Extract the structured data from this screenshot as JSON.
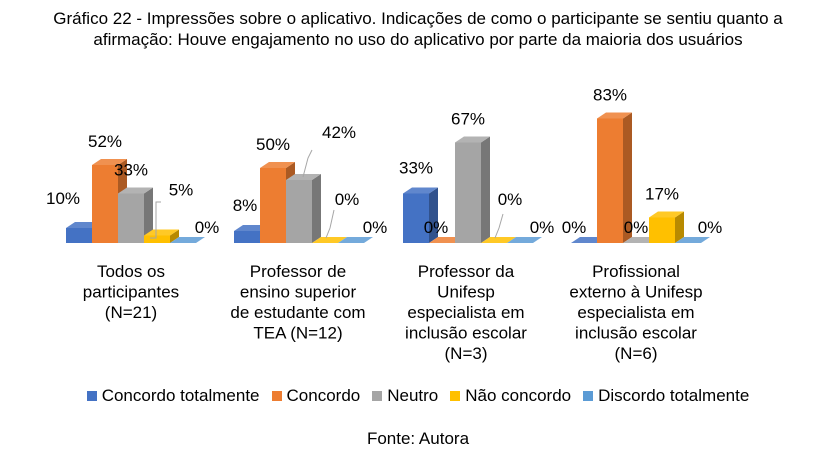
{
  "chart_data": {
    "type": "bar",
    "title": "Gráfico 22 - Impressões sobre o aplicativo. Indicações de como o participante se sentiu quanto a afirmação: Houve engajamento no uso do aplicativo por parte da maioria dos usuários",
    "title_lines": [
      "Gráfico 22 - Impressões sobre o aplicativo. Indicações de como o participante se sentiu quanto a",
      "afirmação: Houve engajamento no uso do aplicativo por parte da maioria dos usuários"
    ],
    "categories": [
      "Todos os participantes (N=21)",
      "Professor de ensino superior de estudante com TEA (N=12)",
      "Professor da Unifesp especialista em inclusão escolar (N=3)",
      "Profissional externo à Unifesp especialista em inclusão escolar (N=6)"
    ],
    "category_lines": [
      [
        "Todos os",
        "participantes",
        "(N=21)"
      ],
      [
        "Professor de",
        "ensino superior",
        "de estudante com",
        "TEA (N=12)"
      ],
      [
        "Professor da",
        "Unifesp",
        "especialista em",
        "inclusão escolar",
        "(N=3)"
      ],
      [
        "Profissional",
        "externo à Unifesp",
        "especialista em",
        "inclusão escolar",
        "(N=6)"
      ]
    ],
    "series": [
      {
        "name": "Concordo totalmente",
        "color": "#4472C4",
        "values": [
          10,
          8,
          33,
          0
        ]
      },
      {
        "name": "Concordo",
        "color": "#ED7D31",
        "values": [
          52,
          50,
          0,
          83
        ]
      },
      {
        "name": "Neutro",
        "color": "#A5A5A5",
        "values": [
          33,
          42,
          67,
          0
        ]
      },
      {
        "name": "Não concordo",
        "color": "#FFC000",
        "values": [
          5,
          0,
          0,
          17
        ]
      },
      {
        "name": "Discordo totalmente",
        "color": "#5B9BD5",
        "values": [
          0,
          0,
          0,
          0
        ]
      }
    ],
    "data_labels": [
      [
        "10%",
        "52%",
        "33%",
        "5%",
        "0%"
      ],
      [
        "8%",
        "50%",
        "42%",
        "0%",
        "0%"
      ],
      [
        "33%",
        "0%",
        "67%",
        "0%",
        "0%"
      ],
      [
        "0%",
        "83%",
        "0%",
        "17%",
        "0%"
      ]
    ],
    "ylim": [
      0,
      100
    ],
    "grid": false,
    "legend_position": "bottom",
    "style": "3d-column"
  },
  "source": "Fonte: Autora"
}
